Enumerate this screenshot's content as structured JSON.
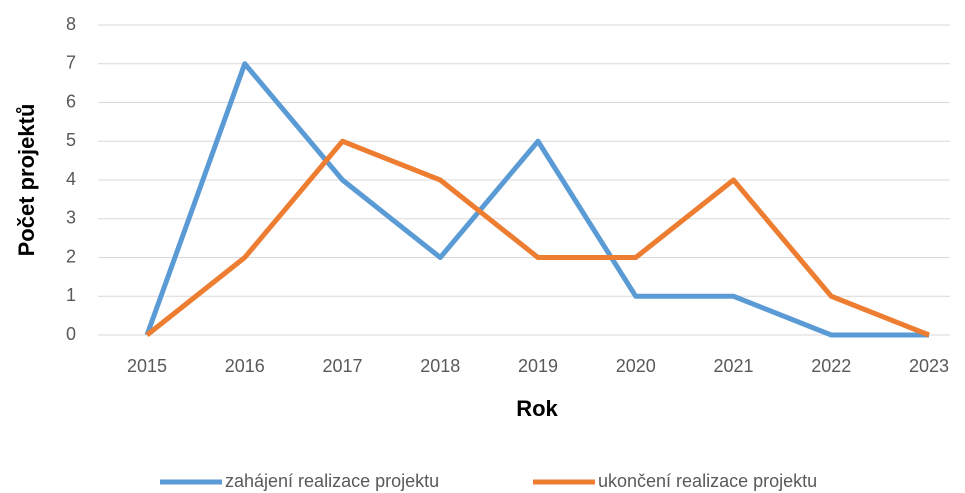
{
  "chart_data": {
    "type": "line",
    "x_label": "Rok",
    "y_label": "Počet projektů",
    "categories": [
      "2015",
      "2016",
      "2017",
      "2018",
      "2019",
      "2020",
      "2021",
      "2022",
      "2023"
    ],
    "series": [
      {
        "name": "zahájení realizace projektu",
        "color": "#5b9bd5",
        "values": [
          0,
          7,
          4,
          2,
          5,
          1,
          1,
          0,
          0
        ]
      },
      {
        "name": "ukončení realizace projektu",
        "color": "#ed7d31",
        "values": [
          0,
          2,
          5,
          4,
          2,
          2,
          4,
          1,
          0
        ]
      }
    ],
    "ylim": [
      0,
      8
    ],
    "yticks": [
      0,
      1,
      2,
      3,
      4,
      5,
      6,
      7,
      8
    ],
    "grid": true,
    "legend": "bottom"
  }
}
